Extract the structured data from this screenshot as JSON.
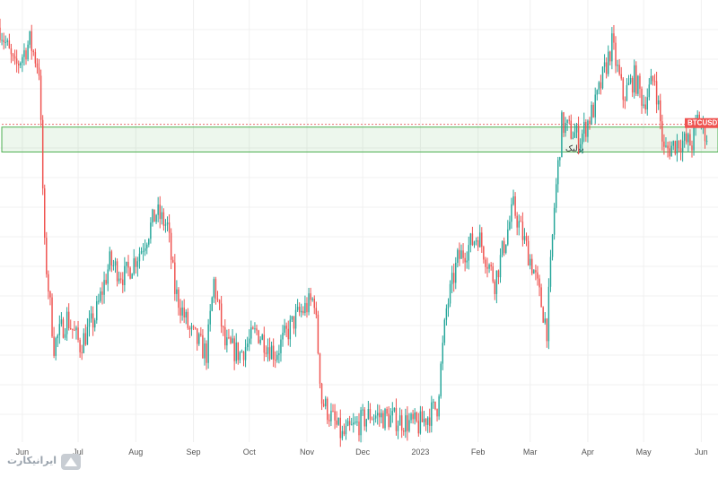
{
  "chart_data": {
    "type": "candlestick",
    "symbol": "BTCUSDT",
    "zone_label": "پولبک",
    "x_ticks": [
      "Jun",
      "Jul",
      "Aug",
      "Sep",
      "Oct",
      "Nov",
      "Dec",
      "2023",
      "Feb",
      "Mar",
      "Apr",
      "May",
      "Jun"
    ],
    "y_axis_shown": false,
    "grid": true,
    "colors": {
      "up": "#26a69a",
      "down": "#ef5350",
      "zone": "#4caf50",
      "marker": "#e57373",
      "grid": "#f0f0f0"
    },
    "path_description": "Bitcoin daily candles from late May 2022 to early June 2023",
    "series": [
      {
        "x": "2022-05-20",
        "y": 31
      },
      {
        "x": "2022-05-28",
        "y": 29.5
      },
      {
        "x": "2022-06-05",
        "y": 30.5
      },
      {
        "x": "2022-06-10",
        "y": 29.5
      },
      {
        "x": "2022-06-13",
        "y": 23
      },
      {
        "x": "2022-06-18",
        "y": 19.5
      },
      {
        "x": "2022-06-25",
        "y": 20.5
      },
      {
        "x": "2022-07-02",
        "y": 19.5
      },
      {
        "x": "2022-07-10",
        "y": 20.5
      },
      {
        "x": "2022-07-18",
        "y": 22.5
      },
      {
        "x": "2022-07-26",
        "y": 22
      },
      {
        "x": "2022-08-04",
        "y": 23
      },
      {
        "x": "2022-08-12",
        "y": 24.3
      },
      {
        "x": "2022-08-18",
        "y": 23.8
      },
      {
        "x": "2022-08-22",
        "y": 21.5
      },
      {
        "x": "2022-08-30",
        "y": 20
      },
      {
        "x": "2022-09-08",
        "y": 19.2
      },
      {
        "x": "2022-09-12",
        "y": 21.8
      },
      {
        "x": "2022-09-18",
        "y": 19.5
      },
      {
        "x": "2022-09-26",
        "y": 19.2
      },
      {
        "x": "2022-10-05",
        "y": 20
      },
      {
        "x": "2022-10-15",
        "y": 19.2
      },
      {
        "x": "2022-10-26",
        "y": 20.5
      },
      {
        "x": "2022-11-05",
        "y": 21.2
      },
      {
        "x": "2022-11-09",
        "y": 17.5
      },
      {
        "x": "2022-11-20",
        "y": 16.2
      },
      {
        "x": "2022-12-05",
        "y": 17
      },
      {
        "x": "2022-12-20",
        "y": 16.8
      },
      {
        "x": "2022-12-31",
        "y": 16.6
      },
      {
        "x": "2023-01-10",
        "y": 17.3
      },
      {
        "x": "2023-01-15",
        "y": 20.8
      },
      {
        "x": "2023-01-21",
        "y": 22.6
      },
      {
        "x": "2023-02-01",
        "y": 23.5
      },
      {
        "x": "2023-02-10",
        "y": 21.8
      },
      {
        "x": "2023-02-20",
        "y": 24.5
      },
      {
        "x": "2023-03-03",
        "y": 22.2
      },
      {
        "x": "2023-03-10",
        "y": 20.1
      },
      {
        "x": "2023-03-14",
        "y": 24.5
      },
      {
        "x": "2023-03-18",
        "y": 27.5
      },
      {
        "x": "2023-03-28",
        "y": 27
      },
      {
        "x": "2023-04-05",
        "y": 28.2
      },
      {
        "x": "2023-04-14",
        "y": 30.4
      },
      {
        "x": "2023-04-20",
        "y": 28.5
      },
      {
        "x": "2023-04-26",
        "y": 29.2
      },
      {
        "x": "2023-05-01",
        "y": 28.3
      },
      {
        "x": "2023-05-07",
        "y": 29.2
      },
      {
        "x": "2023-05-12",
        "y": 26.5
      },
      {
        "x": "2023-05-20",
        "y": 26.9
      },
      {
        "x": "2023-05-27",
        "y": 26.8
      },
      {
        "x": "2023-05-30",
        "y": 27.7
      },
      {
        "x": "2023-06-05",
        "y": 27
      }
    ],
    "zone": {
      "y_low": 26.5,
      "y_high": 27.4,
      "marker_line": 27.5,
      "x_start": "2022-05-20",
      "x_end": "2023-06-10"
    }
  },
  "logo": {
    "text": "ایرانیکارت"
  }
}
